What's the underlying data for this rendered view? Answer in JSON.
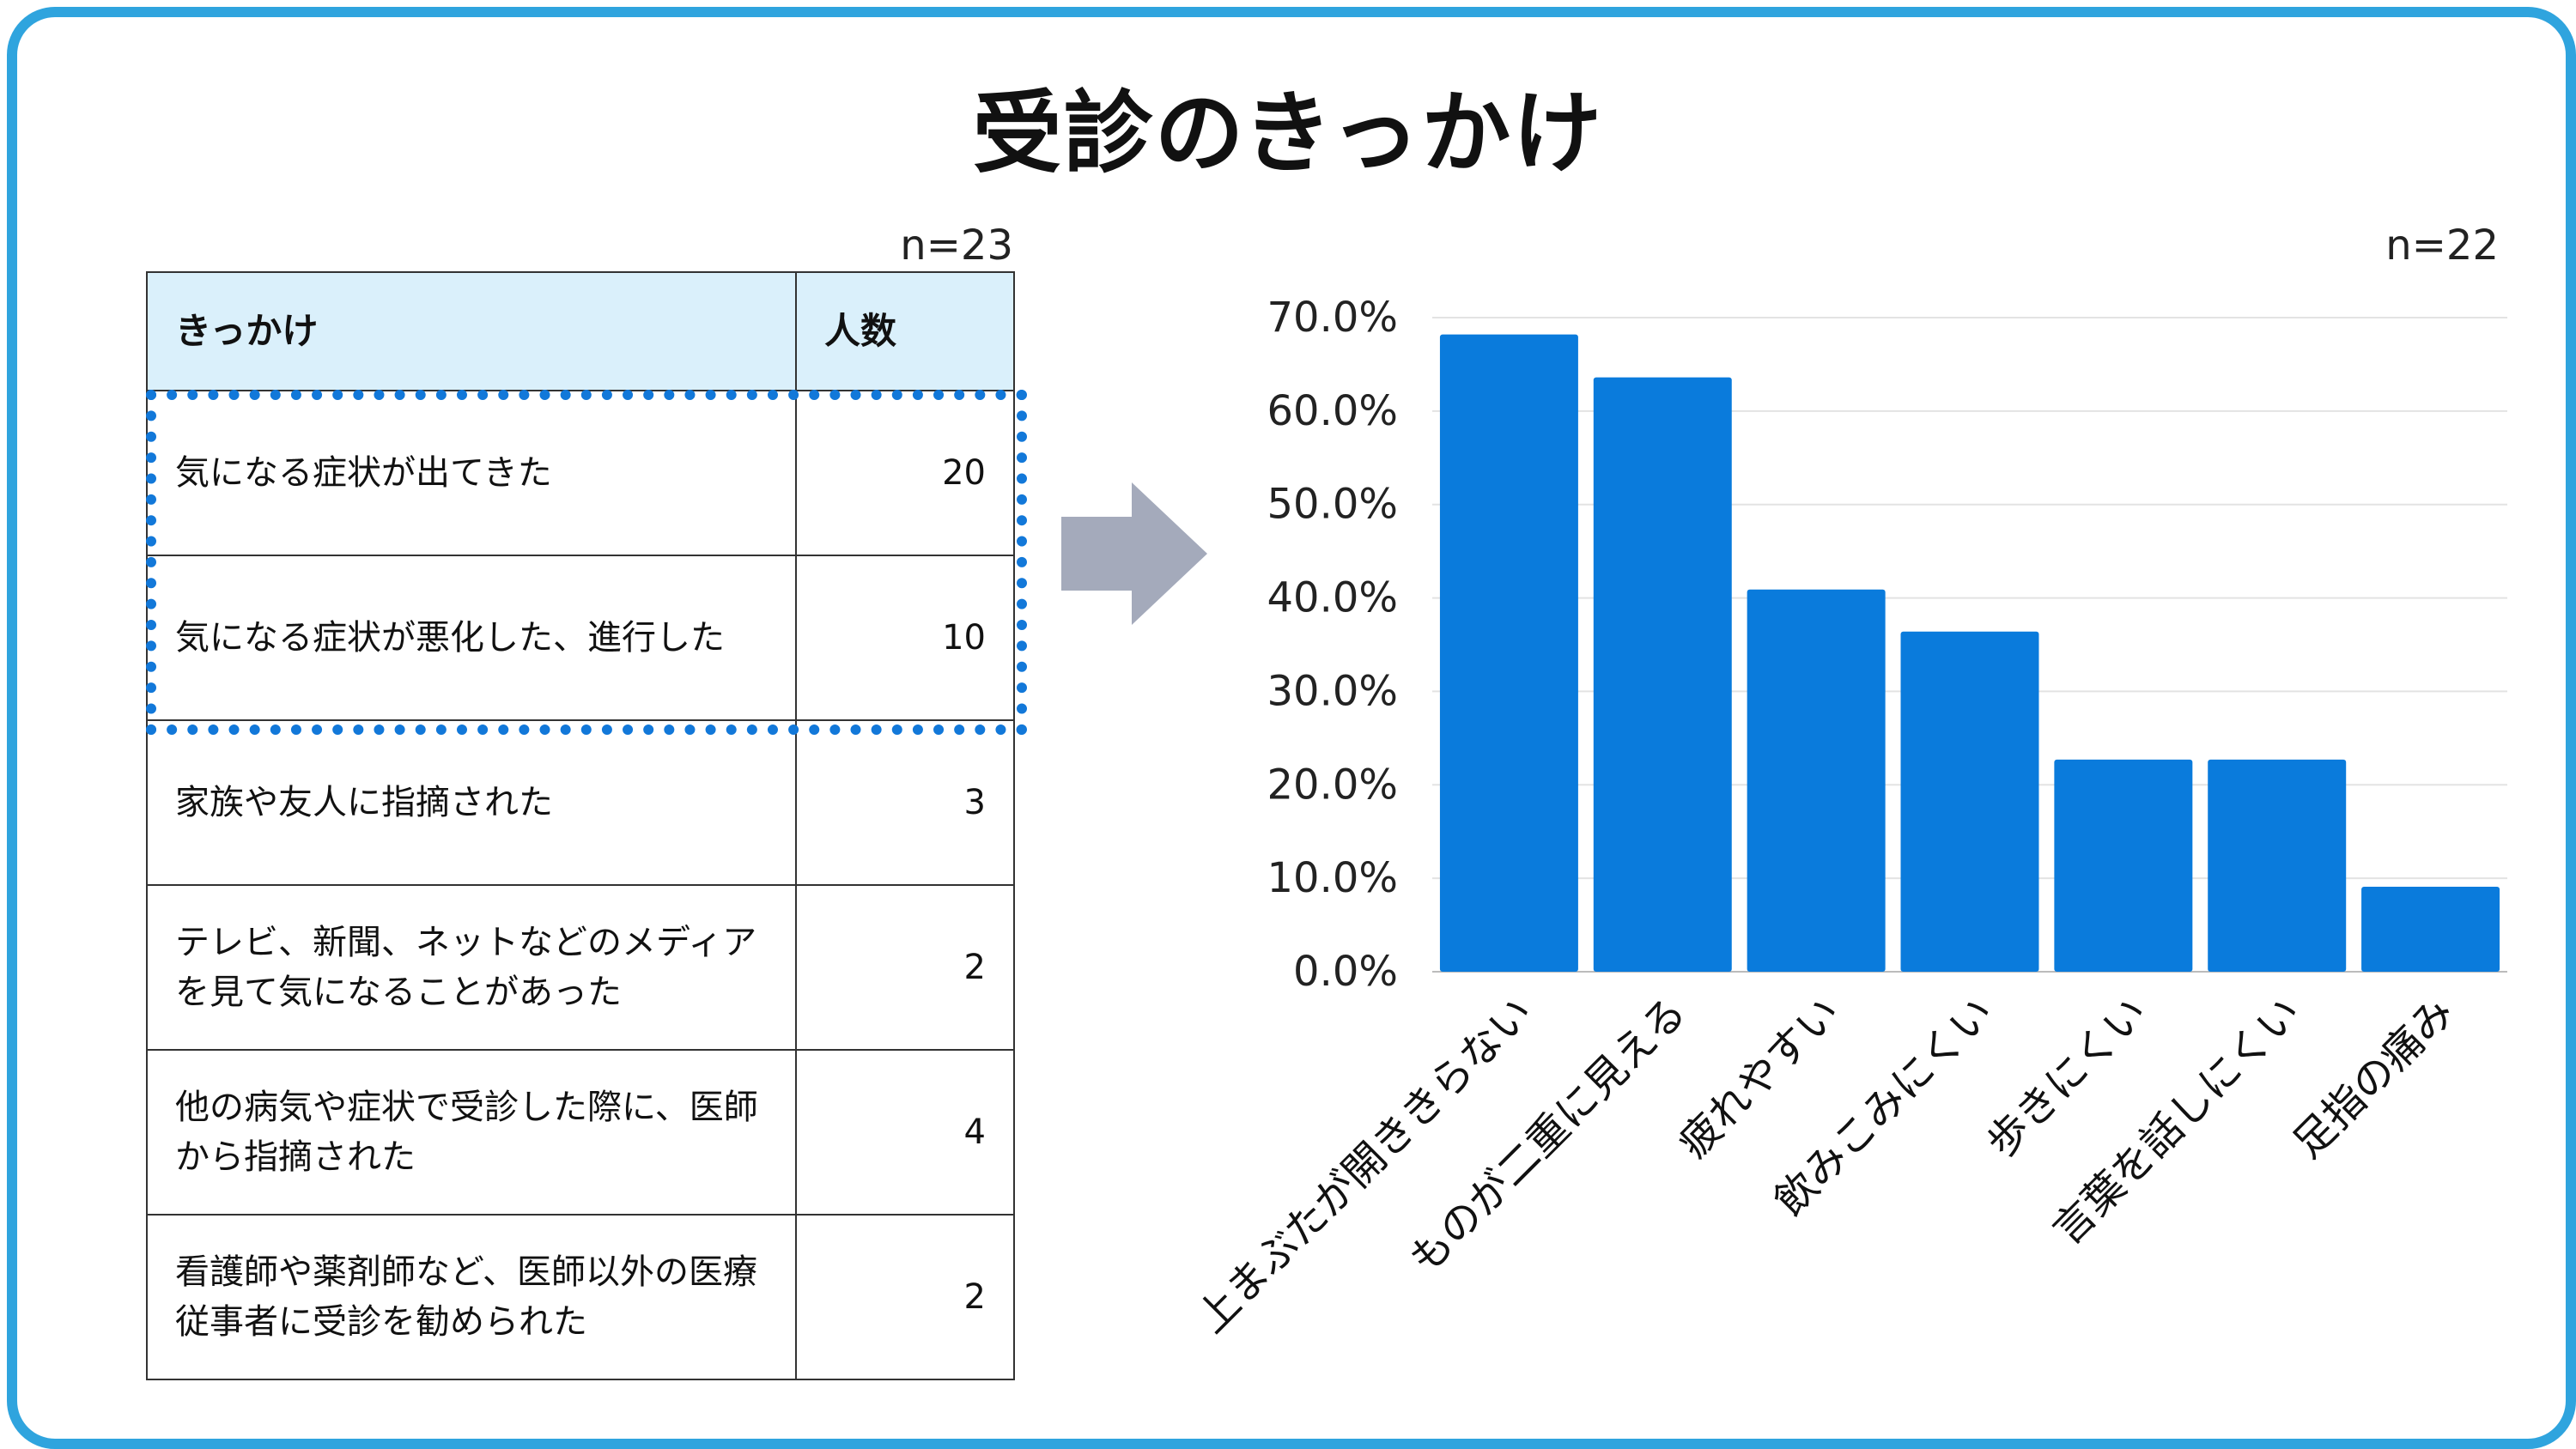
{
  "title": "受診のきっかけ",
  "table": {
    "n_label": "n=23",
    "header": {
      "reason": "きっかけ",
      "count": "人数"
    },
    "rows": [
      {
        "reason": "気になる症状が出てきた",
        "count": "20"
      },
      {
        "reason": "気になる症状が悪化した、進行した",
        "count": "10"
      },
      {
        "reason": "家族や友人に指摘された",
        "count": "3"
      },
      {
        "reason": "テレビ、新聞、ネットなどのメディアを見て気になることがあった",
        "count": "2"
      },
      {
        "reason": "他の病気や症状で受診した際に、医師から指摘された",
        "count": "4"
      },
      {
        "reason": "看護師や薬剤師など、医師以外の医療従事者に受診を勧められた",
        "count": "2"
      }
    ]
  },
  "highlight_color": "#1278d9",
  "arrow_color": "#a4aabb",
  "chart_data": {
    "type": "bar",
    "n_label": "n=22",
    "categories": [
      "上まぶたが開ききらない",
      "ものが二重に見える",
      "疲れやすい",
      "飲みこみにくい",
      "歩きにくい",
      "言葉を話しにくい",
      "足指の痛み"
    ],
    "values": [
      68.2,
      63.6,
      40.9,
      36.4,
      22.7,
      22.7,
      9.1
    ],
    "ylim": [
      0,
      70
    ],
    "yticks": [
      "0.0%",
      "10.0%",
      "20.0%",
      "30.0%",
      "40.0%",
      "50.0%",
      "60.0%",
      "70.0%"
    ],
    "bar_color": "#0a7bdc",
    "grid": true
  }
}
